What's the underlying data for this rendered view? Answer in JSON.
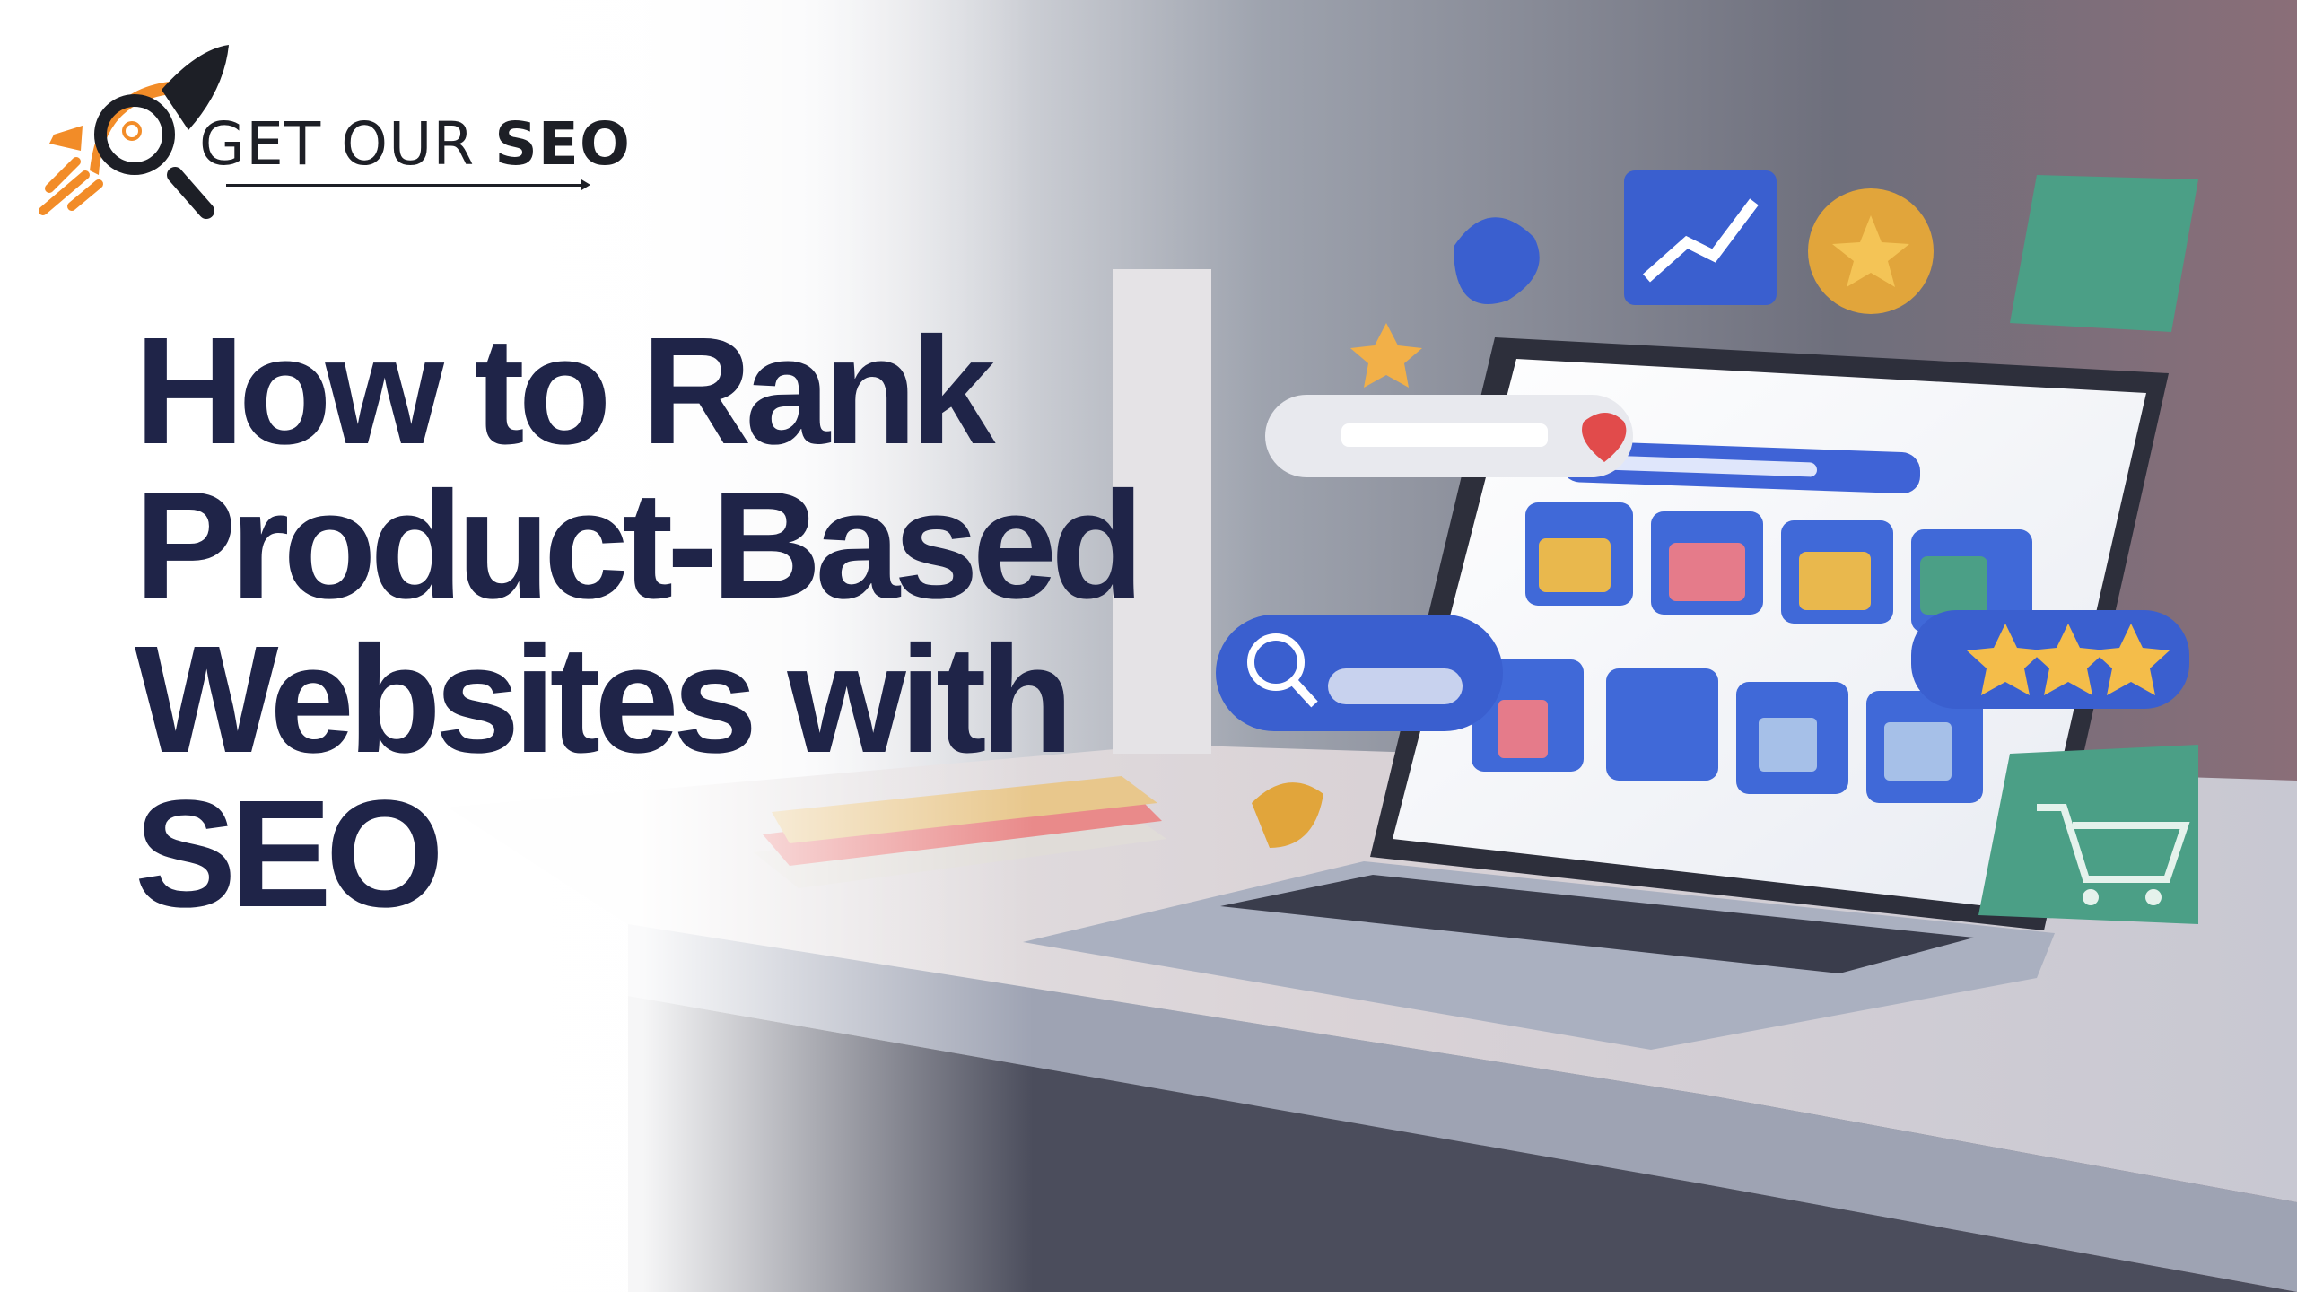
{
  "brand": {
    "logo_text_light": "GET OUR",
    "logo_text_bold": "SEO",
    "accent_color": "#f28c28",
    "dark_color": "#1d1f26"
  },
  "headline": {
    "lines": [
      "How to Rank",
      "Product-Based",
      "Websites with",
      "SEO"
    ],
    "color": "#1f2448"
  },
  "illustration": {
    "subject": "laptop with product tiles and floating SEO icons",
    "icons": [
      "search-bar",
      "location-pin",
      "growth-chart",
      "star-coin",
      "rating-stars",
      "shopping-cart",
      "shopping-bag"
    ],
    "rating_stars": 3
  }
}
